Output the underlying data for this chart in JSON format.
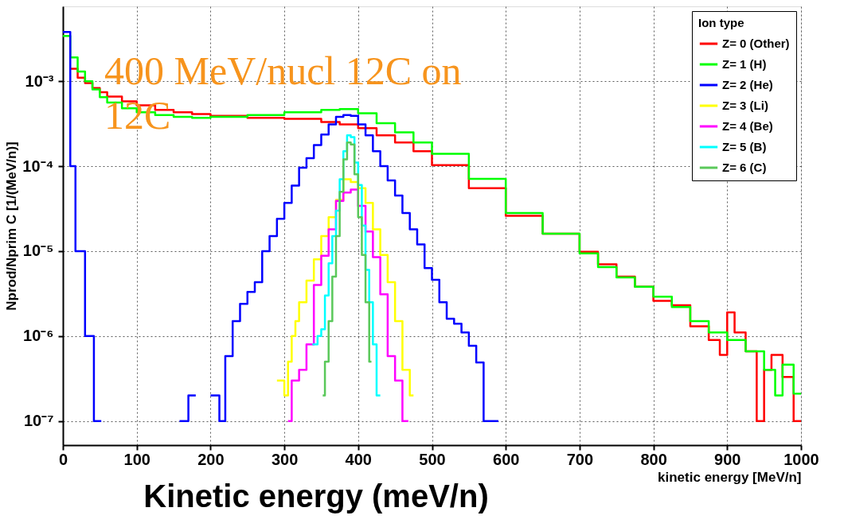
{
  "chart_data": {
    "type": "step",
    "xlabel": "kinetic energy [MeV/n]",
    "ylabel": "Nprod/Nprim C [1/(MeV/n)]",
    "legend_title": "Ion type",
    "legend": "top right",
    "grid": true,
    "log": true,
    "xlim": [
      0,
      1000
    ],
    "xticks": [
      0,
      100,
      200,
      300,
      400,
      500,
      600,
      700,
      800,
      900,
      1000
    ],
    "ylim": [
      5.2e-08,
      0.0076
    ],
    "yticks": [
      {
        "value": 1e-07,
        "label": "10⁻⁷"
      },
      {
        "value": 1e-06,
        "label": "10⁻⁶"
      },
      {
        "value": 1e-05,
        "label": "10⁻⁵"
      },
      {
        "value": 0.0001,
        "label": "10⁻⁴"
      },
      {
        "value": 0.001,
        "label": "10⁻³"
      }
    ],
    "annotations": [
      "400 MeV/nucl 12C on 12C",
      "Kinetic energy (meV/n)"
    ],
    "series": [
      {
        "name": "Z= 0 (Other)",
        "color": "#ff0000",
        "x": [
          10,
          20,
          30,
          40,
          50,
          60,
          80,
          100,
          125,
          150,
          175,
          200,
          250,
          300,
          350,
          375,
          400,
          425,
          450,
          475,
          500,
          550,
          600,
          650,
          700,
          725,
          750,
          775,
          800,
          825,
          850,
          875,
          890,
          900,
          910,
          925,
          940,
          950,
          960,
          975,
          990,
          1000
        ],
        "values": [
          0.0014,
          0.0011,
          0.00095,
          0.00083,
          0.00074,
          0.00066,
          0.00058,
          0.00052,
          0.00046,
          0.00043,
          0.00041,
          0.00039,
          0.00037,
          0.00036,
          0.00033,
          0.00031,
          0.00028,
          0.00023,
          0.00019,
          0.00015,
          0.000103,
          5.5e-05,
          2.6e-05,
          1.6e-05,
          9.8e-06,
          7e-06,
          5e-06,
          3.8e-06,
          2.6e-06,
          2.3e-06,
          1.3e-06,
          9e-07,
          6e-07,
          1.9e-06,
          1.1e-06,
          6.6e-07,
          1e-07,
          4e-07,
          6e-07,
          3.3e-07,
          1e-07,
          1e-07
        ]
      },
      {
        "name": "Z= 1 (H)",
        "color": "#00ff00",
        "x": [
          0,
          10,
          20,
          30,
          40,
          50,
          60,
          80,
          100,
          125,
          150,
          175,
          200,
          250,
          300,
          350,
          375,
          400,
          425,
          450,
          475,
          500,
          550,
          600,
          650,
          700,
          725,
          750,
          775,
          800,
          825,
          850,
          875,
          900,
          925,
          950,
          965,
          975,
          990,
          1000
        ],
        "values": [
          0.0034,
          0.0019,
          0.0013,
          0.001,
          0.0008,
          0.00065,
          0.00056,
          0.00048,
          0.00043,
          0.0004,
          0.00038,
          0.00037,
          0.00038,
          0.0004,
          0.00043,
          0.00046,
          0.00047,
          0.00042,
          0.00032,
          0.00025,
          0.00019,
          0.00014,
          7.1e-05,
          2.8e-05,
          1.6e-05,
          9.4e-06,
          6.5e-06,
          4.9e-06,
          3.8e-06,
          2.9e-06,
          2.2e-06,
          1.5e-06,
          1.1e-06,
          9e-07,
          6.6e-07,
          4e-07,
          2e-07,
          4.6e-07,
          2.1e-07,
          2.1e-07
        ]
      },
      {
        "name": "Z= 2 (He)",
        "color": "#0000ff",
        "x": [
          0,
          10,
          17,
          30,
          42,
          52,
          53,
          158,
          170,
          180,
          181,
          200,
          212,
          220,
          230,
          240,
          250,
          260,
          270,
          280,
          290,
          300,
          310,
          320,
          330,
          340,
          350,
          360,
          370,
          380,
          390,
          400,
          410,
          420,
          430,
          440,
          450,
          460,
          470,
          480,
          490,
          500,
          510,
          520,
          530,
          540,
          550,
          560,
          570,
          580,
          590
        ],
        "values": [
          0.0038,
          0.0001,
          1e-05,
          1e-06,
          1e-07,
          1e-07,
          null,
          1e-07,
          2e-07,
          2e-07,
          null,
          2e-07,
          1e-07,
          5.8e-07,
          1.5e-06,
          2.4e-06,
          3.3e-06,
          4.3e-06,
          1e-05,
          1.5e-05,
          2.4e-05,
          3.7e-05,
          5.9e-05,
          9.6e-05,
          0.000124,
          0.000177,
          0.000236,
          0.00031,
          0.00038,
          0.0004,
          0.00039,
          0.00031,
          0.00023,
          0.00015,
          0.0001,
          6.8e-05,
          4.5e-05,
          2.8e-05,
          1.8e-05,
          1.2e-05,
          6.3e-06,
          4.6e-06,
          2.5e-06,
          1.6e-06,
          1.4e-06,
          1.1e-06,
          7.7e-07,
          4.9e-07,
          1e-07,
          1e-07,
          1e-07
        ]
      },
      {
        "name": "Z= 3 (Li)",
        "color": "#ffff00",
        "x": [
          290,
          300,
          305,
          310,
          315,
          320,
          330,
          340,
          350,
          360,
          370,
          380,
          390,
          400,
          410,
          420,
          430,
          440,
          450,
          460,
          470,
          475
        ],
        "values": [
          3e-07,
          2e-07,
          5e-07,
          1e-06,
          1.5e-06,
          2.5e-06,
          4.5e-06,
          8e-06,
          1.5e-05,
          2.5e-05,
          4e-05,
          7e-05,
          6.5e-05,
          5.5e-05,
          3.7e-05,
          1.8e-05,
          9e-06,
          4.3e-06,
          1.5e-06,
          4e-07,
          2e-07,
          2e-07
        ]
      },
      {
        "name": "Z= 4 (Be)",
        "color": "#ff00ff",
        "x": [
          305,
          310,
          320,
          330,
          340,
          350,
          360,
          370,
          380,
          390,
          400,
          410,
          420,
          430,
          440,
          450,
          460,
          468
        ],
        "values": [
          1e-07,
          3e-07,
          4e-07,
          8e-07,
          4e-06,
          8.8e-06,
          1.8e-05,
          3.9e-05,
          4.9e-05,
          5.3e-05,
          3.4e-05,
          1.7e-05,
          8.5e-06,
          3.1e-06,
          5.8e-07,
          3e-07,
          1e-07,
          1e-07
        ]
      },
      {
        "name": "Z= 5 (B)",
        "color": "#00ffff",
        "x": [
          338,
          345,
          350,
          355,
          360,
          365,
          370,
          375,
          380,
          385,
          390,
          395,
          400,
          405,
          410,
          415,
          420,
          425,
          430
        ],
        "values": [
          8e-07,
          1e-06,
          1.2e-06,
          3e-06,
          7.2e-06,
          1.5e-05,
          3e-05,
          7e-05,
          0.00015,
          0.00023,
          0.00022,
          0.00011,
          6e-05,
          2e-05,
          6e-06,
          2.5e-06,
          8e-07,
          2e-07,
          2e-07
        ]
      },
      {
        "name": "Z= 6 (C)",
        "color": "#5ac85a",
        "x": [
          352,
          355,
          360,
          365,
          370,
          375,
          380,
          385,
          390,
          395,
          400,
          405,
          410,
          415,
          418
        ],
        "values": [
          2e-07,
          5e-07,
          1.5e-06,
          5e-06,
          1.5e-05,
          5e-05,
          0.00012,
          0.00019,
          0.00018,
          8e-05,
          2.5e-05,
          9e-06,
          2.5e-06,
          5e-07,
          5e-07
        ]
      }
    ]
  }
}
